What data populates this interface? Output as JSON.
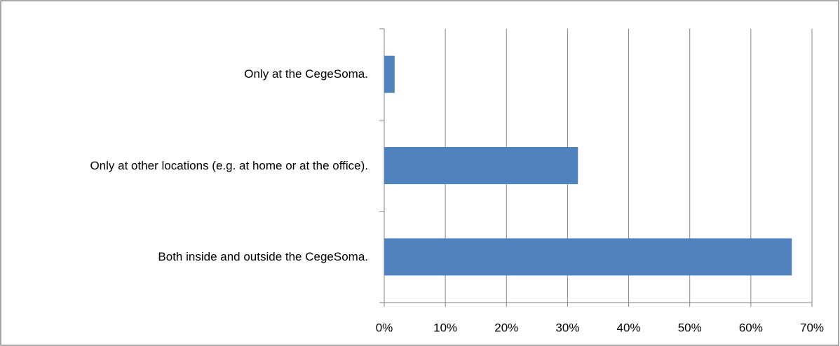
{
  "chart_data": {
    "type": "bar",
    "orientation": "horizontal",
    "categories": [
      "Only at the CegeSoma.",
      "Only at other locations (e.g. at home or at the office).",
      "Both inside and outside the CegeSoma."
    ],
    "values": [
      1.7,
      31.7,
      66.7
    ],
    "color": "#4f81bd",
    "xlim": [
      0,
      70
    ],
    "xticks": [
      {
        "value": 0,
        "label": "0%"
      },
      {
        "value": 10,
        "label": "10%"
      },
      {
        "value": 20,
        "label": "20%"
      },
      {
        "value": 30,
        "label": "30%"
      },
      {
        "value": 40,
        "label": "40%"
      },
      {
        "value": 50,
        "label": "50%"
      },
      {
        "value": 60,
        "label": "60%"
      },
      {
        "value": 70,
        "label": "70%"
      }
    ],
    "grid": true
  }
}
